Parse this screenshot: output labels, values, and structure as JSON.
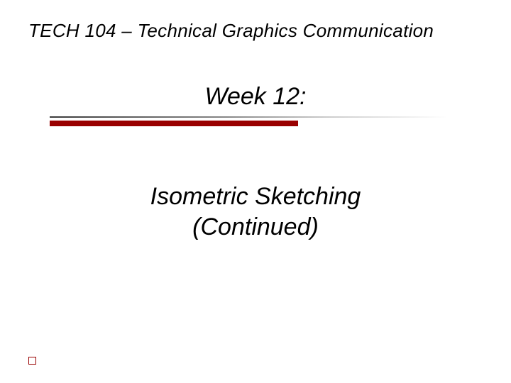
{
  "slide": {
    "header": "TECH 104 – Technical Graphics Communication",
    "week_title": "Week 12:",
    "topic_line1": "Isometric Sketching",
    "topic_line2": "(Continued)"
  },
  "styling": {
    "background_color": "#ffffff",
    "text_color": "#000000",
    "accent_color": "#990000",
    "header_fontsize": 26,
    "title_fontsize": 34,
    "font_style": "italic",
    "red_bar_width": 350,
    "red_bar_height": 8,
    "divider_width": 560,
    "bullet_size": 11
  }
}
